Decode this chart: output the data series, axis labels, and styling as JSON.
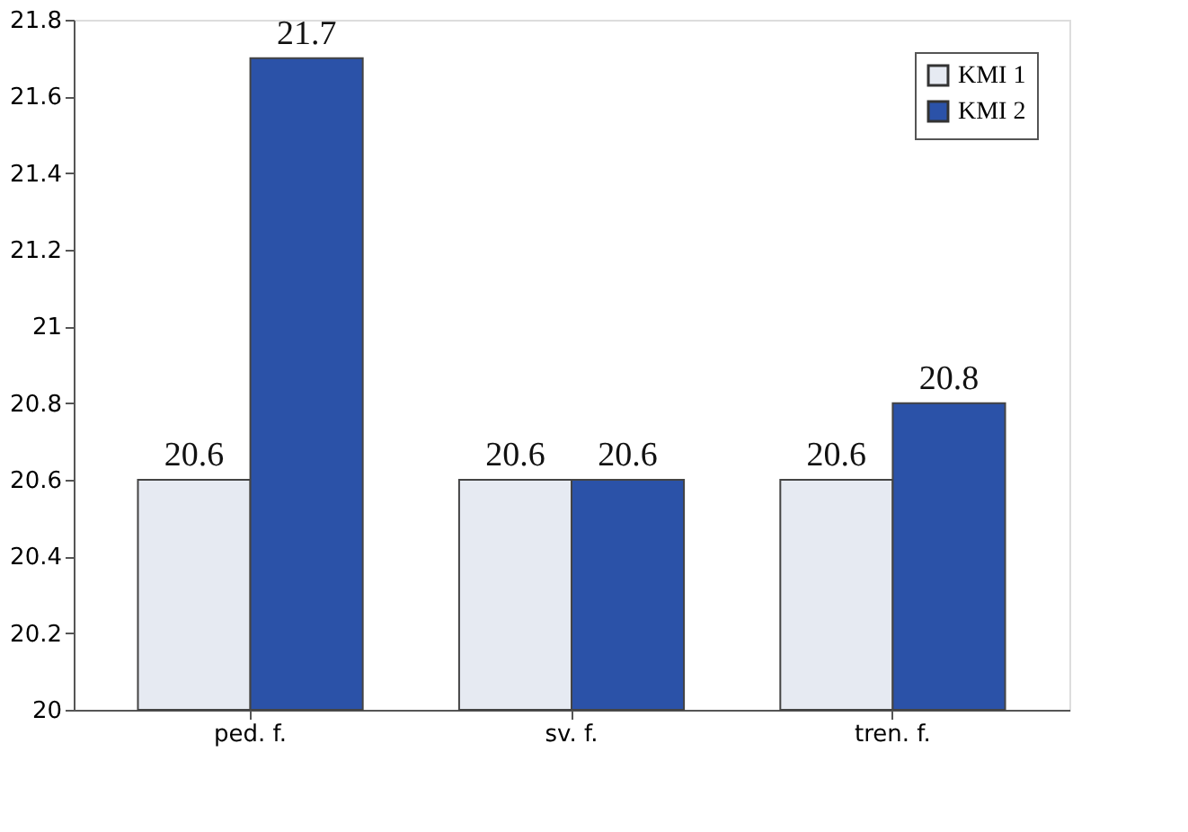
{
  "chart_data": {
    "type": "bar",
    "categories": [
      "ped. f.",
      "sv. f.",
      "tren. f."
    ],
    "series": [
      {
        "name": "KMI 1",
        "color": "#e6eaf2",
        "values": [
          20.6,
          20.6,
          20.6
        ]
      },
      {
        "name": "KMI 2",
        "color": "#2b52a8",
        "values": [
          21.7,
          20.6,
          20.8
        ]
      }
    ],
    "ylim": [
      20,
      21.8
    ],
    "yticks": [
      20,
      20.2,
      20.4,
      20.6,
      20.8,
      21,
      21.2,
      21.4,
      21.6,
      21.8
    ],
    "data_labels": true,
    "legend": "top right",
    "grid": false
  }
}
